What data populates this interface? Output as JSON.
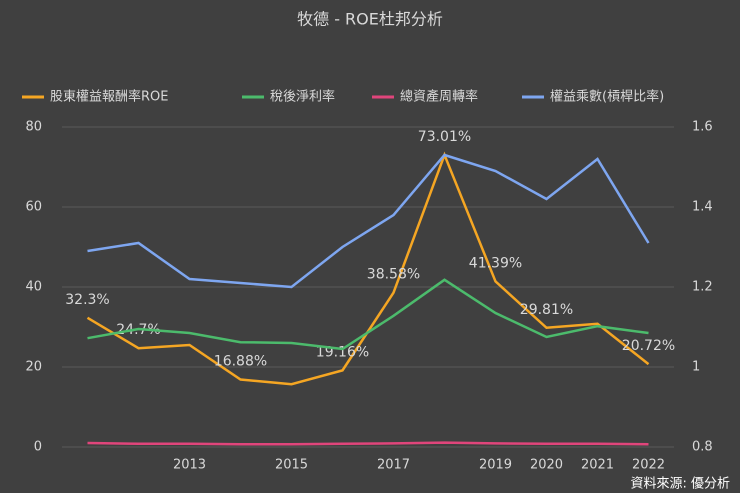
{
  "chart_data": {
    "type": "line",
    "title": "牧德 - ROE杜邦分析",
    "source": "資料來源: 優分析",
    "categories": [
      null,
      null,
      "2013",
      null,
      "2015",
      null,
      "2017",
      null,
      "2019",
      "2020",
      "2021",
      "2022"
    ],
    "series": [
      {
        "name": "股東權益報酬率ROE",
        "color": "#f5a623",
        "values": [
          32.3,
          24.7,
          25.5,
          16.88,
          15.7,
          19.16,
          38.58,
          73.01,
          41.39,
          29.81,
          30.8,
          20.72
        ],
        "value_labels": [
          "32.3%",
          "24.7%",
          null,
          "16.88%",
          null,
          "19.16%",
          "38.58%",
          "73.01%",
          "41.39%",
          "29.81%",
          null,
          "20.72%"
        ]
      },
      {
        "name": "稅後淨利率",
        "color": "#4cbb6c",
        "values": [
          27.2,
          29.5,
          28.5,
          26.2,
          26,
          24.5,
          32.8,
          41.8,
          33.5,
          27.5,
          30.2,
          28.5
        ]
      },
      {
        "name": "總資產周轉率",
        "color": "#e0457b",
        "values": [
          1.0,
          0.8,
          0.8,
          0.7,
          0.7,
          0.8,
          0.9,
          1.1,
          0.9,
          0.8,
          0.8,
          0.7
        ]
      },
      {
        "name": "權益乘數(槓桿比率)",
        "color": "#7ea6f0",
        "axis": "y2",
        "values": [
          1.29,
          1.31,
          1.22,
          1.21,
          1.2,
          1.3,
          1.38,
          1.53,
          1.49,
          1.42,
          1.52,
          1.31
        ]
      }
    ],
    "ylim": [
      0,
      80
    ],
    "yticks": [
      0,
      20,
      40,
      60,
      80
    ],
    "y2lim": [
      0.8,
      1.6
    ],
    "y2ticks": [
      0.8,
      1,
      1.2,
      1.4,
      1.6
    ],
    "grid": true,
    "legend": "top"
  }
}
